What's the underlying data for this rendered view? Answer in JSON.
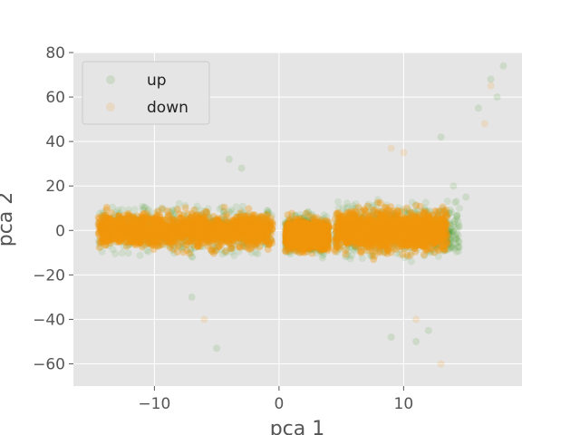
{
  "chart_data": {
    "type": "scatter",
    "title": "",
    "xlabel": "pca 1",
    "ylabel": "pca 2",
    "xlim": [
      -16.5,
      19.5
    ],
    "ylim": [
      -70,
      80
    ],
    "xticks": [
      -10,
      0,
      10
    ],
    "xtick_labels": [
      "−10",
      "0",
      "10"
    ],
    "yticks": [
      -60,
      -40,
      -20,
      0,
      20,
      40,
      60,
      80
    ],
    "ytick_labels": [
      "−60",
      "−40",
      "−20",
      "0",
      "20",
      "40",
      "60",
      "80"
    ],
    "grid": true,
    "legend_position": "top-left",
    "series": [
      {
        "name": "up",
        "color": "#4a9a2a",
        "clusters": [
          {
            "x_range": [
              -14.5,
              -0.5
            ],
            "y_center": 0,
            "y_spread": 14
          },
          {
            "x_range": [
              0.5,
              4.0
            ],
            "y_center": -2,
            "y_spread": 12
          },
          {
            "x_range": [
              4.5,
              14.5
            ],
            "y_center": 0,
            "y_spread": 16
          }
        ],
        "outliers": [
          [
            17,
            68
          ],
          [
            17.5,
            60
          ],
          [
            16,
            55
          ],
          [
            18,
            74
          ],
          [
            13,
            42
          ],
          [
            11,
            -50
          ],
          [
            12,
            -45
          ],
          [
            9,
            -48
          ],
          [
            -5,
            -53
          ],
          [
            -7,
            -30
          ],
          [
            14,
            20
          ],
          [
            15,
            15
          ],
          [
            -4,
            32
          ],
          [
            -3,
            28
          ]
        ]
      },
      {
        "name": "down",
        "color": "#f0960a",
        "clusters": [
          {
            "x_range": [
              -14.5,
              -0.5
            ],
            "y_center": 0,
            "y_spread": 12
          },
          {
            "x_range": [
              0.5,
              4.0
            ],
            "y_center": -2,
            "y_spread": 10
          },
          {
            "x_range": [
              4.5,
              13.5
            ],
            "y_center": 0,
            "y_spread": 14
          }
        ],
        "outliers": [
          [
            17,
            65
          ],
          [
            16.5,
            48
          ],
          [
            13,
            -60
          ],
          [
            11,
            -40
          ],
          [
            -6,
            -40
          ],
          [
            9,
            37
          ],
          [
            10,
            35
          ]
        ]
      }
    ]
  }
}
